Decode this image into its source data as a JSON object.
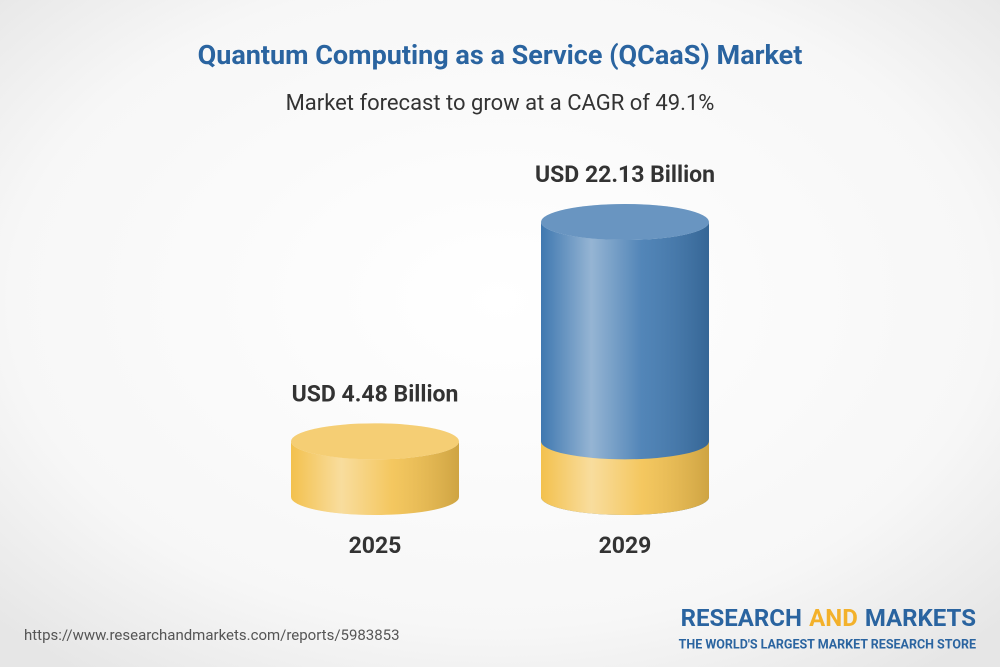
{
  "chart_data": {
    "type": "cylinder",
    "title": "Quantum Computing as a Service (QCaaS) Market",
    "subtitle": "Market forecast to grow at a CAGR of 49.1%",
    "categories": [
      "2025",
      "2029"
    ],
    "values": [
      4.48,
      22.13
    ],
    "value_labels": [
      "USD 4.48 Billion",
      "USD 22.13 Billion"
    ],
    "colors": [
      "#f3c14e",
      "#3f78b0"
    ]
  },
  "footer": {
    "url": "https://www.researchandmarkets.com/reports/5983853",
    "brand": [
      "RESEARCH",
      "AND",
      "MARKETS"
    ],
    "brand_colors": [
      "#2a64a0",
      "#f3b12b",
      "#2a64a0"
    ],
    "tagline": "THE WORLD'S LARGEST MARKET RESEARCH STORE"
  }
}
